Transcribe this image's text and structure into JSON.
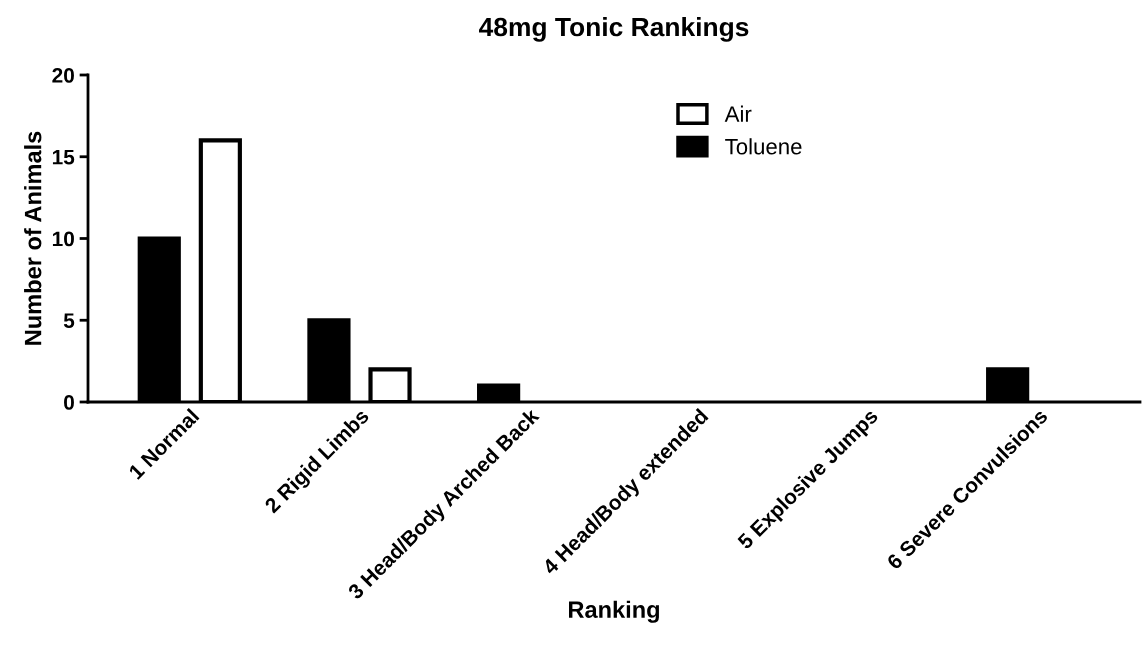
{
  "chart_data": {
    "type": "bar",
    "title": "48mg Tonic Rankings",
    "xlabel": "Ranking",
    "ylabel": "Number of Animals",
    "categories": [
      "1 Normal",
      "2 Rigid Limbs",
      "3 Head/Body Arched Back",
      "4 Head/Body extended",
      "5 Explosive Jumps",
      "6 Severe Convulsions"
    ],
    "series": [
      {
        "name": "Toluene",
        "color": "#000000",
        "values": [
          10,
          5,
          1,
          0,
          0,
          2
        ]
      },
      {
        "name": "Air",
        "color": "#ffffff",
        "values": [
          16,
          2,
          0,
          0,
          0,
          0
        ]
      }
    ],
    "ylim": [
      0,
      20
    ],
    "yticks": [
      0,
      5,
      10,
      15,
      20
    ],
    "grid": false,
    "legend": "top"
  }
}
